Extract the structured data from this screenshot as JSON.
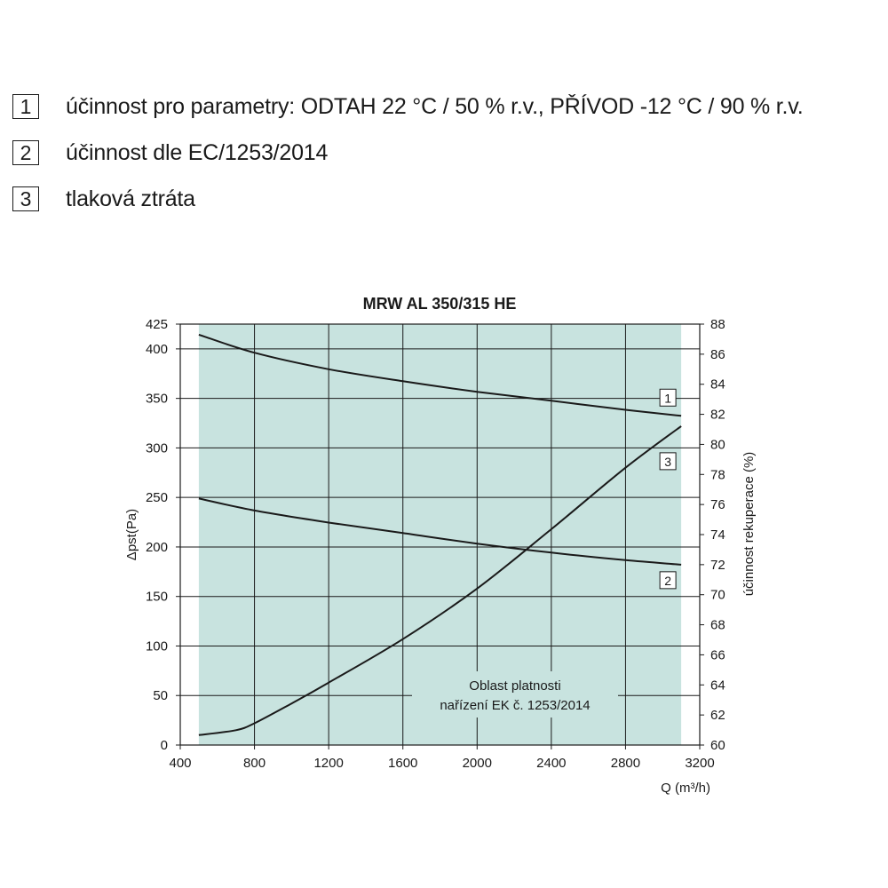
{
  "legend": [
    {
      "number": "1",
      "text": "účinnost pro parametry: ODTAH 22 °C / 50 % r.v., PŘÍVOD -12 °C / 90 % r.v."
    },
    {
      "number": "2",
      "text": "účinnost dle EC/1253/2014"
    },
    {
      "number": "3",
      "text": "tlaková ztráta"
    }
  ],
  "chart_data": {
    "type": "line",
    "title": "MRW AL 350/315 HE",
    "xlabel": "Q (m³/h)",
    "ylabel_left": "Δpst(Pa)",
    "ylabel_right": "účinnost rekuperace (%)",
    "xlim": [
      400,
      3200
    ],
    "ylim_left": [
      0,
      425
    ],
    "ylim_right": [
      60,
      88
    ],
    "x_ticks": [
      "400",
      "800",
      "1200",
      "1600",
      "2000",
      "2400",
      "2800",
      "3200"
    ],
    "y_left_ticks": [
      "0",
      "50",
      "100",
      "150",
      "200",
      "250",
      "300",
      "350",
      "400",
      "425"
    ],
    "y_right_ticks": [
      "60",
      "62",
      "64",
      "66",
      "68",
      "70",
      "72",
      "74",
      "76",
      "78",
      "80",
      "82",
      "84",
      "86",
      "88"
    ],
    "grid": true,
    "region": {
      "x": [
        500,
        3100
      ],
      "label_line1": "Oblast platnosti",
      "label_line2": "nařízení EK č. 1253/2014",
      "color": "#c8e3df"
    },
    "series": [
      {
        "name": "1",
        "axis": "right",
        "x": [
          500,
          800,
          1200,
          1600,
          2000,
          2400,
          2800,
          3100
        ],
        "values": [
          87.3,
          86.1,
          85.0,
          84.2,
          83.5,
          82.9,
          82.3,
          81.9
        ]
      },
      {
        "name": "2",
        "axis": "right",
        "x": [
          500,
          800,
          1200,
          1600,
          2000,
          2400,
          2800,
          3100
        ],
        "values": [
          76.4,
          75.6,
          74.8,
          74.1,
          73.4,
          72.8,
          72.3,
          72.0
        ]
      },
      {
        "name": "3",
        "axis": "left",
        "x": [
          500,
          700,
          800,
          1000,
          1200,
          1600,
          2000,
          2400,
          2800,
          3100
        ],
        "values": [
          10,
          15,
          22,
          42,
          63,
          107,
          158,
          218,
          280,
          322
        ]
      }
    ]
  }
}
